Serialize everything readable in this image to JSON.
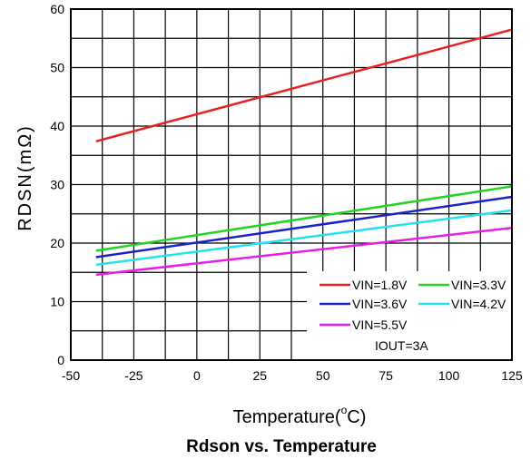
{
  "chart_data": {
    "type": "line",
    "title": "Rdson vs. Temperature",
    "xlabel_main": "Temperature(",
    "xlabel_sup": "o",
    "xlabel_unit": "C)",
    "ylabel": "RDSN(mΩ)",
    "xlim": [
      -50,
      125
    ],
    "ylim": [
      0,
      60
    ],
    "x_ticks": [
      "-50",
      "-25",
      "0",
      "25",
      "50",
      "75",
      "100",
      "125"
    ],
    "y_ticks": [
      "0",
      "10",
      "20",
      "30",
      "40",
      "50",
      "60"
    ],
    "grid": true,
    "legend_position": "bottom-right",
    "annotation": "IOUT=3A",
    "series": [
      {
        "name": "VIN=1.8V",
        "color": "#e8201f",
        "x": [
          -40,
          125
        ],
        "y": [
          37.4,
          56.5
        ]
      },
      {
        "name": "VIN=3.3V",
        "color": "#22d422",
        "x": [
          -40,
          125
        ],
        "y": [
          18.7,
          29.7
        ]
      },
      {
        "name": "VIN=3.6V",
        "color": "#1a22c8",
        "x": [
          -40,
          125
        ],
        "y": [
          17.6,
          27.9
        ]
      },
      {
        "name": "VIN=4.2V",
        "color": "#22e2ee",
        "x": [
          -40,
          125
        ],
        "y": [
          16.3,
          25.6
        ]
      },
      {
        "name": "VIN=5.5V",
        "color": "#e81ee8",
        "x": [
          -40,
          125
        ],
        "y": [
          14.6,
          22.6
        ]
      }
    ]
  }
}
